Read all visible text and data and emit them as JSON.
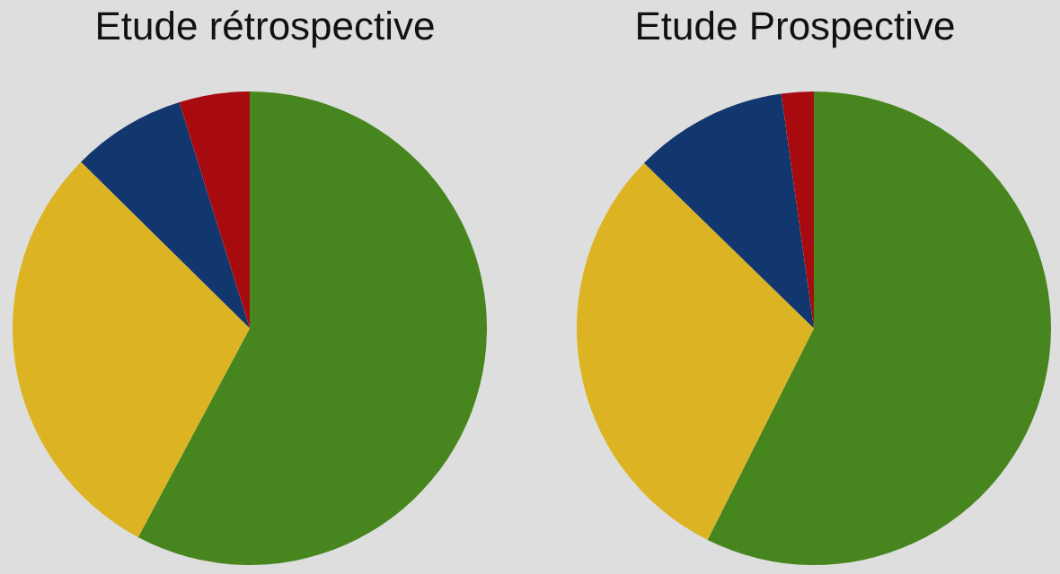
{
  "chart_data": [
    {
      "type": "pie",
      "title": "Etude rétrospective",
      "categories": [
        null,
        null,
        null,
        null
      ],
      "values": [
        57.8,
        29.6,
        7.8,
        4.8
      ],
      "colors": [
        "#47861e",
        "#dcb423",
        "#12366e",
        "#a70b0f"
      ],
      "legend": false
    },
    {
      "type": "pie",
      "title": "Etude Prospective",
      "categories": [
        null,
        null,
        null,
        null
      ],
      "values": [
        57.4,
        29.9,
        10.5,
        2.2
      ],
      "colors": [
        "#47861e",
        "#dcb423",
        "#12366e",
        "#a70b0f"
      ],
      "legend": false
    }
  ]
}
